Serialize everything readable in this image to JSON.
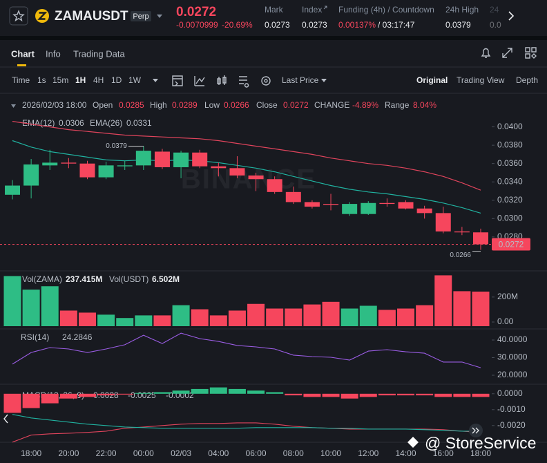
{
  "header": {
    "symbol": "ZAMAUSDT",
    "badge": "Perp",
    "price": "0.0272",
    "change": "-0.0070999",
    "change_pct": "-20.69%",
    "stats": [
      {
        "label": "Mark",
        "value": "0.0273"
      },
      {
        "label": "Index",
        "value": "0.0273"
      },
      {
        "label": "Funding (4h) / Countdown",
        "value": "0.00137%",
        "value2": "/ 03:17:47"
      },
      {
        "label": "24h High",
        "value": "0.0379"
      },
      {
        "label": "24",
        "value": "0.0"
      }
    ]
  },
  "tabs": [
    "Chart",
    "Info",
    "Trading Data"
  ],
  "toolbar": {
    "time": "Time",
    "intervals": [
      "1s",
      "15m",
      "1H",
      "4H",
      "1D",
      "1W"
    ],
    "price_type": "Last Price",
    "views": [
      "Original",
      "Trading View",
      "Depth"
    ]
  },
  "info_line": {
    "time": "2026/02/03 18:00",
    "items": [
      {
        "label": "Open",
        "value": "0.0285"
      },
      {
        "label": "High",
        "value": "0.0289"
      },
      {
        "label": "Low",
        "value": "0.0266"
      },
      {
        "label": "Close",
        "value": "0.0272"
      },
      {
        "label": "CHANGE",
        "value": "-4.89%"
      },
      {
        "label": "Range",
        "value": "8.04%"
      }
    ]
  },
  "price_chart": {
    "type": "candlestick",
    "watermark": "BINANCE",
    "time": [
      null,
      "18:00",
      null,
      "20:00",
      null,
      "22:00",
      null,
      "00:00",
      null,
      "02/03",
      null,
      "04:00",
      null,
      "06:00",
      null,
      "08:00",
      null,
      "10:00",
      null,
      "12:00",
      null,
      "14:00",
      null,
      "16:00",
      null,
      "18:00"
    ],
    "open": [
      0.0326,
      0.0336,
      0.0358,
      0.0361,
      0.036,
      0.0345,
      0.0357,
      0.0358,
      0.0373,
      0.0356,
      0.0372,
      0.0357,
      0.0355,
      0.0347,
      0.0343,
      0.0329,
      0.0318,
      0.0316,
      0.0305,
      0.0305,
      0.0317,
      0.0318,
      0.0311,
      0.0306,
      0.0286,
      0.0285
    ],
    "high": [
      0.0342,
      0.0365,
      0.0375,
      0.0366,
      0.0363,
      0.0362,
      0.0363,
      0.0379,
      0.0376,
      0.0374,
      0.0375,
      0.0361,
      0.0368,
      0.035,
      0.0346,
      0.0335,
      0.032,
      0.0327,
      0.0318,
      0.0319,
      0.0322,
      0.032,
      0.0314,
      0.0313,
      0.0291,
      0.0289
    ],
    "low": [
      0.0321,
      0.0322,
      0.0353,
      0.0355,
      0.0343,
      0.0343,
      0.0353,
      0.0353,
      0.0354,
      0.0344,
      0.0355,
      0.0346,
      0.0344,
      0.033,
      0.0327,
      0.0316,
      0.0311,
      0.0309,
      0.0303,
      0.0304,
      0.0313,
      0.031,
      0.03,
      0.0284,
      0.0282,
      0.0266
    ],
    "close": [
      0.0336,
      0.0359,
      0.0361,
      0.036,
      0.0345,
      0.0358,
      0.0358,
      0.0374,
      0.0356,
      0.0372,
      0.0357,
      0.0355,
      0.0347,
      0.0343,
      0.0329,
      0.0318,
      0.0313,
      0.0315,
      0.0316,
      0.0317,
      0.0316,
      0.0311,
      0.0306,
      0.0286,
      0.0285,
      0.0272
    ],
    "up_color": "#2ebd85",
    "down_color": "#f6465d",
    "ema": [
      {
        "name": "EMA(12)",
        "label": "0.0306",
        "color": "#20b2a0",
        "values": [
          0.0385,
          0.0378,
          0.0373,
          0.037,
          0.0367,
          0.0364,
          0.0363,
          0.0364,
          0.0363,
          0.0364,
          0.0363,
          0.0361,
          0.0358,
          0.0355,
          0.0351,
          0.0346,
          0.0341,
          0.0336,
          0.0332,
          0.0329,
          0.0327,
          0.0324,
          0.0321,
          0.0317,
          0.0312,
          0.0306
        ]
      },
      {
        "name": "EMA(26)",
        "label": "0.0331",
        "color": "#e0445c",
        "values": [
          0.0406,
          0.0403,
          0.04,
          0.0397,
          0.0395,
          0.0393,
          0.0391,
          0.039,
          0.0389,
          0.0388,
          0.0387,
          0.0385,
          0.0382,
          0.0379,
          0.0376,
          0.0373,
          0.037,
          0.0366,
          0.0363,
          0.036,
          0.0358,
          0.0355,
          0.0351,
          0.0346,
          0.0339,
          0.0331
        ]
      }
    ],
    "high_label": "0.0379",
    "low_label": "0.0266",
    "last_price_label": "0.0272",
    "ylim": [
      0.0243,
      0.0414
    ],
    "yticks": [
      {
        "value": 0.04,
        "label": "0.0400"
      },
      {
        "value": 0.038,
        "label": "0.0380"
      },
      {
        "value": 0.036,
        "label": "0.0360"
      },
      {
        "value": 0.034,
        "label": "0.0340"
      },
      {
        "value": 0.032,
        "label": "0.0320"
      },
      {
        "value": 0.03,
        "label": "0.0300"
      },
      {
        "value": 0.028,
        "label": "0.0280"
      }
    ]
  },
  "volume_chart": {
    "type": "bar",
    "legend": [
      {
        "label": "Vol(ZAMA)",
        "value": "237.415M"
      },
      {
        "label": "Vol(USDT)",
        "value": "6.502M"
      }
    ],
    "values": [
      344,
      251,
      274,
      107,
      93,
      79,
      56,
      74,
      74,
      144,
      116,
      74,
      107,
      153,
      121,
      121,
      149,
      167,
      121,
      140,
      112,
      121,
      144,
      349,
      240,
      237.415
    ],
    "ylim": [
      0,
      370
    ],
    "yticks": [
      {
        "value": 200,
        "label": "200M"
      },
      {
        "value": 0,
        "label": "0.00"
      }
    ]
  },
  "rsi_chart": {
    "type": "line",
    "name": "RSI(14)",
    "label": "24.2846",
    "color": "#9b5de5",
    "values": [
      26.3,
      32.9,
      35.7,
      34.9,
      32.9,
      34.9,
      37.3,
      42.7,
      38.0,
      43.9,
      40.8,
      39.2,
      36.9,
      36.1,
      34.9,
      31.4,
      30.6,
      30.2,
      28.6,
      33.7,
      34.5,
      33.3,
      32.5,
      27.5,
      27.5,
      24.2846
    ],
    "ylim": [
      14.9,
      45.5
    ],
    "yticks": [
      {
        "value": 40,
        "label": "40.0000"
      },
      {
        "value": 30,
        "label": "30.0000"
      },
      {
        "value": 20,
        "label": "20.0000"
      }
    ]
  },
  "macd_chart": {
    "type": "macd",
    "name": "MACD(12, 26, 9)",
    "labels": [
      "-0.0028",
      "-0.0025",
      "-0.0002"
    ],
    "histogram": [
      -0.0012,
      -0.0009,
      -0.0006,
      -0.0003,
      -0.0002,
      -0.0001,
      -5e-05,
      5e-05,
      0.0001,
      0.0002,
      0.0003,
      0.0004,
      0.0003,
      0.0002,
      0.0001,
      -0.0001,
      -0.0002,
      -0.0002,
      -0.0003,
      -0.0002,
      -0.0001,
      -0.0001,
      -0.0001,
      -0.0002,
      -0.0002,
      -0.0002
    ],
    "lines": [
      {
        "color": "#e0445c",
        "values": [
          -0.00304,
          -0.0026,
          -0.00252,
          -0.00248,
          -0.00243,
          -0.00235,
          -0.00217,
          -0.00209,
          -0.002,
          -0.00191,
          -0.00187,
          -0.00187,
          -0.00183,
          -0.00183,
          -0.00191,
          -0.00204,
          -0.00213,
          -0.00217,
          -0.00222,
          -0.00222,
          -0.00222,
          -0.00222,
          -0.00222,
          -0.00226,
          -0.00235,
          -0.00243
        ]
      },
      {
        "color": "#20b2a0",
        "values": [
          -0.0013,
          -0.00152,
          -0.00165,
          -0.00178,
          -0.00191,
          -0.002,
          -0.00209,
          -0.00213,
          -0.00217,
          -0.00217,
          -0.00217,
          -0.00217,
          -0.00217,
          -0.00213,
          -0.00213,
          -0.00213,
          -0.00213,
          -0.00217,
          -0.00217,
          -0.00222,
          -0.00222,
          -0.00222,
          -0.00226,
          -0.0023,
          -0.00235,
          -0.00235
        ]
      }
    ],
    "ylim": [
      -0.00305,
      0.0006
    ],
    "yticks": [
      {
        "value": 0,
        "label": "0.0000"
      },
      {
        "value": -0.001,
        "label": "-0.0010"
      },
      {
        "value": -0.002,
        "label": "-0.0020"
      }
    ]
  },
  "overlay_watermark": "@ StoreService"
}
